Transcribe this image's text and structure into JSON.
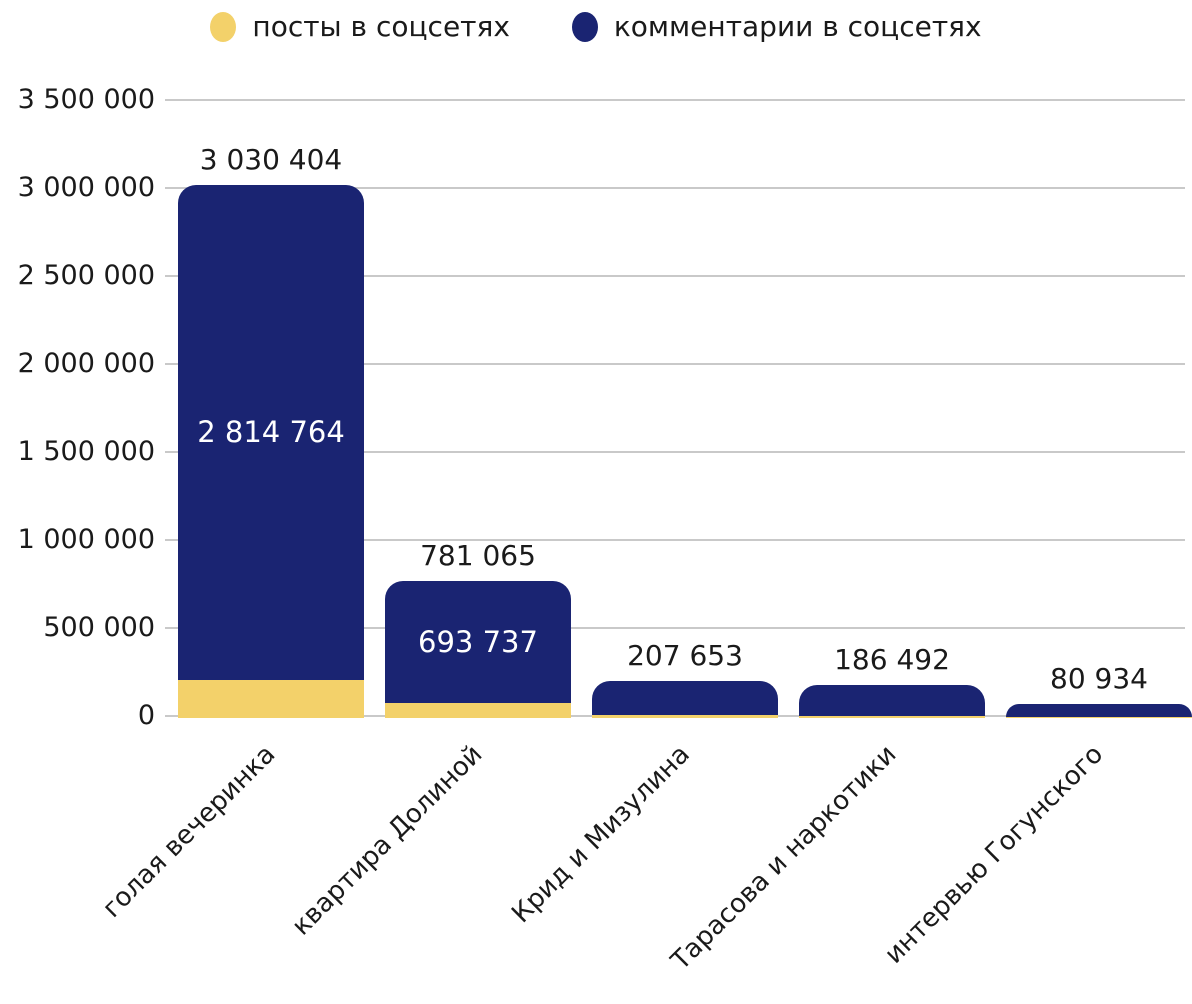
{
  "colors": {
    "background": "#ffffff",
    "grid": "#c9c9c9",
    "text": "#1a1a1a",
    "inside_label": "#ffffff",
    "posts": "#f3d16a",
    "comments": "#1a2472"
  },
  "chart_data": {
    "type": "bar",
    "stacked": true,
    "title": "",
    "xlabel": "",
    "ylabel": "",
    "categories": [
      "голая вечеринка",
      "квартира Долиной",
      "Крид и Мизулина",
      "Тарасова и наркотики",
      "интервью Гогунского"
    ],
    "series": [
      {
        "name": "посты в соцсетях",
        "color": "#f3d16a",
        "values": [
          215640,
          87328,
          15000,
          12000,
          3000
        ]
      },
      {
        "name": "комментарии в соцсетях",
        "color": "#1a2472",
        "values": [
          2814764,
          693737,
          192653,
          174492,
          77934
        ]
      }
    ],
    "totals": [
      3030404,
      781065,
      207653,
      186492,
      80934
    ],
    "total_labels": [
      "3 030 404",
      "781 065",
      "207 653",
      "186 492",
      "80 934"
    ],
    "inside_labels": [
      "2 814 764",
      "693 737",
      "",
      "",
      ""
    ],
    "y_tick_labels": [
      "3 500 000",
      "3 000 000",
      "2 500 000",
      "2 000 000",
      "1 500 000",
      "1 000 000",
      "500 000",
      "0"
    ],
    "y_tick_values": [
      3500000,
      3000000,
      2500000,
      2000000,
      1500000,
      1000000,
      500000,
      0
    ],
    "ylim": [
      0,
      3500000
    ],
    "grid": true,
    "legend_position": "top"
  }
}
